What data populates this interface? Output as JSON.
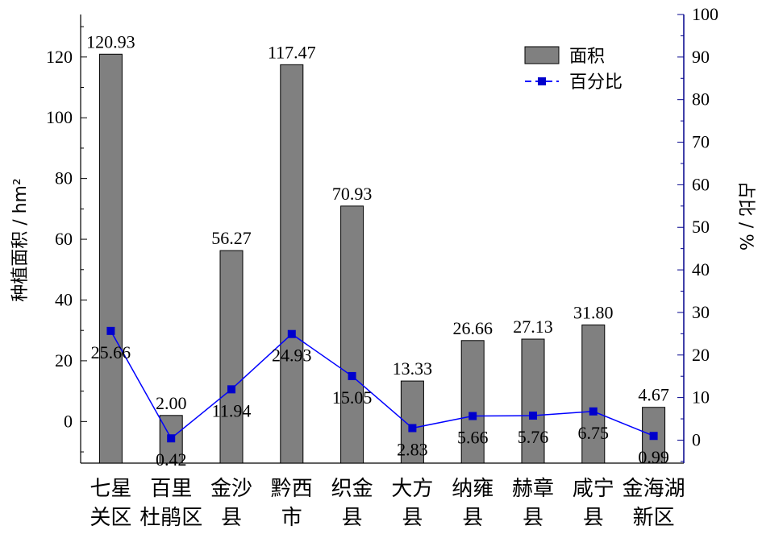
{
  "chart_data": {
    "type": "bar+line",
    "categories": [
      [
        "七星",
        "关区"
      ],
      [
        "百里",
        "杜鹃区"
      ],
      [
        "金沙",
        "县"
      ],
      [
        "黔西",
        "市"
      ],
      [
        "织金",
        "县"
      ],
      [
        "大方",
        "县"
      ],
      [
        "纳雍",
        "县"
      ],
      [
        "赫章",
        "县"
      ],
      [
        "咸宁",
        "县"
      ],
      [
        "金海湖",
        "新区"
      ]
    ],
    "series": [
      {
        "name": "面积",
        "type": "bar",
        "axis": "left",
        "values": [
          120.93,
          2.0,
          56.27,
          117.47,
          70.93,
          13.33,
          26.66,
          27.13,
          31.8,
          4.67
        ],
        "labels": [
          "120.93",
          "2.00",
          "56.27",
          "117.47",
          "70.93",
          "13.33",
          "26.66",
          "27.13",
          "31.80",
          "4.67"
        ]
      },
      {
        "name": "百分比",
        "type": "line",
        "axis": "right",
        "values": [
          25.66,
          0.42,
          11.94,
          24.93,
          15.05,
          2.83,
          5.66,
          5.76,
          6.75,
          0.99
        ],
        "labels": [
          "25.66",
          "0.42",
          "11.94",
          "24.93",
          "15.05",
          "2.83",
          "5.66",
          "5.76",
          "6.75",
          "0.99"
        ]
      }
    ],
    "ylabel_left": "种植面积 / hm²",
    "ylabel_right": "占比 / %",
    "ylim_left": [
      -13.7,
      134
    ],
    "ylim_right": [
      -5.4,
      100
    ],
    "yticks_left": [
      0,
      20,
      40,
      60,
      80,
      100,
      120
    ],
    "yticks_right": [
      0,
      10,
      20,
      30,
      40,
      50,
      60,
      70,
      80,
      90,
      100
    ],
    "legend": {
      "position": "top-right"
    },
    "grid": false,
    "colors": {
      "bar_fill": "#808080",
      "bar_stroke": "#000000",
      "line": "#0000ff",
      "marker": "#0000cc",
      "left_axis": "#000000",
      "right_axis": "#00008b"
    }
  }
}
